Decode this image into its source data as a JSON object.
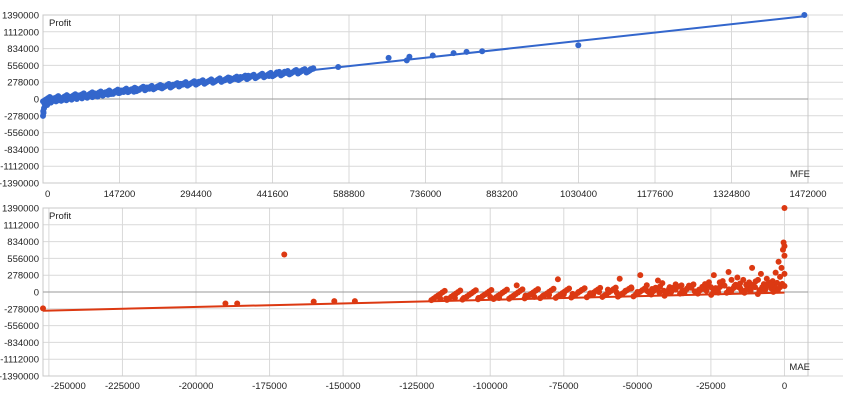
{
  "chart_data": [
    {
      "type": "scatter",
      "title": "",
      "ylabel": "Profit",
      "xlabel": "MFE",
      "xlim": [
        0,
        1472000
      ],
      "ylim": [
        -1390000,
        1390000
      ],
      "x_ticks": [
        {
          "v": 0,
          "t": "0"
        },
        {
          "v": 147200,
          "t": "147200"
        },
        {
          "v": 294400,
          "t": "294400"
        },
        {
          "v": 441600,
          "t": "441600"
        },
        {
          "v": 588800,
          "t": "588800"
        },
        {
          "v": 736000,
          "t": "736000"
        },
        {
          "v": 883200,
          "t": "883200"
        },
        {
          "v": 1030400,
          "t": "1030400"
        },
        {
          "v": 1177600,
          "t": "1177600"
        },
        {
          "v": 1324800,
          "t": "1324800"
        },
        {
          "v": 1472000,
          "t": "1472000"
        }
      ],
      "y_ticks": [
        {
          "v": 1390000,
          "t": "1390000"
        },
        {
          "v": 1112000,
          "t": "1112000"
        },
        {
          "v": 834000,
          "t": "834000"
        },
        {
          "v": 556000,
          "t": "556000"
        },
        {
          "v": 278000,
          "t": "278000"
        },
        {
          "v": 0,
          "t": "0"
        },
        {
          "v": -278000,
          "t": "-278000"
        },
        {
          "v": -556000,
          "t": "-556000"
        },
        {
          "v": -834000,
          "t": "-834000"
        },
        {
          "v": -1112000,
          "t": "-1112000"
        },
        {
          "v": -1390000,
          "t": "-1390000"
        }
      ],
      "color": "#3366cc",
      "grid": true,
      "trendline": {
        "x": [
          0,
          1465000
        ],
        "y": [
          -10000,
          1370000
        ]
      },
      "points": [
        [
          1465000,
          1390000
        ],
        [
          1030000,
          890000
        ],
        [
          845000,
          790000
        ],
        [
          815000,
          780000
        ],
        [
          790000,
          760000
        ],
        [
          750000,
          720000
        ],
        [
          700000,
          640000
        ],
        [
          705000,
          700000
        ],
        [
          665000,
          680000
        ],
        [
          568000,
          530000
        ],
        [
          520000,
          500000
        ],
        [
          515000,
          495000
        ],
        [
          500000,
          480000
        ],
        [
          485000,
          470000
        ],
        [
          465000,
          450000
        ],
        [
          450000,
          440000
        ],
        [
          420000,
          400000
        ],
        [
          395000,
          385000
        ],
        [
          380000,
          365000
        ],
        [
          360000,
          345000
        ],
        [
          340000,
          330000
        ],
        [
          320000,
          300000
        ],
        [
          300000,
          285000
        ],
        [
          290000,
          270000
        ],
        [
          275000,
          260000
        ],
        [
          265000,
          250000
        ],
        [
          250000,
          235000
        ],
        [
          240000,
          225000
        ],
        [
          230000,
          215000
        ],
        [
          220000,
          205000
        ],
        [
          210000,
          200000
        ],
        [
          200000,
          190000
        ],
        [
          190000,
          180000
        ],
        [
          180000,
          170000
        ],
        [
          175000,
          120000
        ],
        [
          170000,
          160000
        ],
        [
          160000,
          150000
        ],
        [
          150000,
          140000
        ],
        [
          140000,
          130000
        ],
        [
          130000,
          120000
        ],
        [
          120000,
          110000
        ],
        [
          110000,
          100000
        ],
        [
          100000,
          90000
        ],
        [
          90000,
          80000
        ],
        [
          80000,
          70000
        ],
        [
          70000,
          60000
        ],
        [
          60000,
          50000
        ],
        [
          50000,
          40000
        ],
        [
          40000,
          30000
        ],
        [
          30000,
          20000
        ],
        [
          20000,
          10000
        ],
        [
          10000,
          5000
        ],
        [
          5000,
          -20000
        ],
        [
          3000,
          -80000
        ],
        [
          2000,
          -150000
        ],
        [
          1000,
          -230000
        ],
        [
          0,
          -280000
        ],
        [
          500,
          -200000
        ],
        [
          8000,
          -100000
        ],
        [
          15000,
          -60000
        ],
        [
          25000,
          -40000
        ],
        [
          35000,
          -30000
        ],
        [
          45000,
          -20000
        ],
        [
          55000,
          -10000
        ],
        [
          65000,
          0
        ],
        [
          75000,
          10000
        ],
        [
          85000,
          20000
        ],
        [
          95000,
          30000
        ],
        [
          105000,
          40000
        ],
        [
          115000,
          55000
        ],
        [
          125000,
          70000
        ],
        [
          135000,
          85000
        ],
        [
          145000,
          100000
        ],
        [
          155000,
          115000
        ],
        [
          165000,
          125000
        ],
        [
          185000,
          150000
        ],
        [
          205000,
          170000
        ],
        [
          225000,
          190000
        ],
        [
          245000,
          215000
        ],
        [
          270000,
          240000
        ],
        [
          310000,
          270000
        ],
        [
          330000,
          290000
        ],
        [
          350000,
          310000
        ],
        [
          370000,
          330000
        ],
        [
          410000,
          360000
        ],
        [
          435000,
          380000
        ],
        [
          470000,
          430000
        ],
        [
          495000,
          460000
        ],
        [
          60000,
          20000
        ],
        [
          80000,
          40000
        ],
        [
          100000,
          60000
        ],
        [
          120000,
          80000
        ],
        [
          20000,
          -30000
        ],
        [
          40000,
          -10000
        ],
        [
          12000,
          -50000
        ],
        [
          30000,
          -20000
        ]
      ]
    },
    {
      "type": "scatter",
      "title": "",
      "ylabel": "Profit",
      "xlabel": "MAE",
      "xlim": [
        -252000,
        8000
      ],
      "ylim": [
        -1390000,
        1390000
      ],
      "x_ticks": [
        {
          "v": -250000,
          "t": "-250000"
        },
        {
          "v": -225000,
          "t": "-225000"
        },
        {
          "v": -200000,
          "t": "-200000"
        },
        {
          "v": -175000,
          "t": "-175000"
        },
        {
          "v": -150000,
          "t": "-150000"
        },
        {
          "v": -125000,
          "t": "-125000"
        },
        {
          "v": -100000,
          "t": "-100000"
        },
        {
          "v": -75000,
          "t": "-75000"
        },
        {
          "v": -50000,
          "t": "-50000"
        },
        {
          "v": -25000,
          "t": "-25000"
        },
        {
          "v": 0,
          "t": "0"
        }
      ],
      "y_ticks": [
        {
          "v": 1390000,
          "t": "1390000"
        },
        {
          "v": 1112000,
          "t": "1112000"
        },
        {
          "v": 834000,
          "t": "834000"
        },
        {
          "v": 556000,
          "t": "556000"
        },
        {
          "v": 278000,
          "t": "278000"
        },
        {
          "v": 0,
          "t": "0"
        },
        {
          "v": -278000,
          "t": "-278000"
        },
        {
          "v": -556000,
          "t": "-556000"
        },
        {
          "v": -834000,
          "t": "-834000"
        },
        {
          "v": -1112000,
          "t": "-1112000"
        },
        {
          "v": -1390000,
          "t": "-1390000"
        }
      ],
      "color": "#dc3912",
      "grid": true,
      "trendline": {
        "x": [
          -252000,
          0
        ],
        "y": [
          -310000,
          -10000
        ]
      },
      "points": [
        [
          -252000,
          -270000
        ],
        [
          -190000,
          -190000
        ],
        [
          -186000,
          -190000
        ],
        [
          -170000,
          620000
        ],
        [
          -160000,
          -160000
        ],
        [
          -153000,
          -150000
        ],
        [
          -146000,
          -150000
        ],
        [
          -117000,
          -110000
        ],
        [
          -115000,
          -110000
        ],
        [
          -112000,
          -100000
        ],
        [
          -109000,
          -100000
        ],
        [
          -104000,
          -100000
        ],
        [
          -100000,
          -80000
        ],
        [
          -97000,
          -100000
        ],
        [
          -93000,
          -90000
        ],
        [
          -91000,
          110000
        ],
        [
          -88000,
          -60000
        ],
        [
          -85000,
          -80000
        ],
        [
          -80000,
          -50000
        ],
        [
          -77000,
          210000
        ],
        [
          -75000,
          -40000
        ],
        [
          -72000,
          -30000
        ],
        [
          -69000,
          30000
        ],
        [
          -66000,
          -20000
        ],
        [
          -63000,
          0
        ],
        [
          -60000,
          40000
        ],
        [
          -57000,
          -10000
        ],
        [
          -56000,
          220000
        ],
        [
          -54000,
          20000
        ],
        [
          -52000,
          60000
        ],
        [
          -50000,
          0
        ],
        [
          -49000,
          280000
        ],
        [
          -47000,
          30000
        ],
        [
          -45000,
          50000
        ],
        [
          -43000,
          190000
        ],
        [
          -41000,
          20000
        ],
        [
          -39000,
          80000
        ],
        [
          -37000,
          40000
        ],
        [
          -35000,
          110000
        ],
        [
          -33000,
          60000
        ],
        [
          -31000,
          120000
        ],
        [
          -29000,
          40000
        ],
        [
          -27000,
          130000
        ],
        [
          -25000,
          80000
        ],
        [
          -24000,
          280000
        ],
        [
          -22000,
          160000
        ],
        [
          -21000,
          180000
        ],
        [
          -19000,
          330000
        ],
        [
          -18000,
          200000
        ],
        [
          -17000,
          100000
        ],
        [
          -16000,
          240000
        ],
        [
          -15000,
          60000
        ],
        [
          -14000,
          200000
        ],
        [
          -13000,
          120000
        ],
        [
          -12000,
          160000
        ],
        [
          -11000,
          400000
        ],
        [
          -10000,
          80000
        ],
        [
          -9000,
          200000
        ],
        [
          -8000,
          300000
        ],
        [
          -7000,
          130000
        ],
        [
          -6000,
          220000
        ],
        [
          -5000,
          100000
        ],
        [
          -4000,
          180000
        ],
        [
          -3000,
          320000
        ],
        [
          -2000,
          500000
        ],
        [
          -1000,
          400000
        ],
        [
          -500,
          700000
        ],
        [
          -300,
          820000
        ],
        [
          0,
          1390000
        ],
        [
          0,
          760000
        ],
        [
          0,
          600000
        ],
        [
          0,
          300000
        ],
        [
          -1500,
          250000
        ],
        [
          -2500,
          150000
        ],
        [
          -3500,
          90000
        ],
        [
          -4500,
          60000
        ],
        [
          -6500,
          40000
        ],
        [
          -8500,
          30000
        ],
        [
          -11500,
          20000
        ],
        [
          -14500,
          10000
        ],
        [
          -18500,
          0
        ],
        [
          -22500,
          -10000
        ],
        [
          -26500,
          20000
        ],
        [
          -30500,
          10000
        ],
        [
          -34500,
          -20000
        ],
        [
          -38500,
          0
        ],
        [
          -42500,
          -10000
        ],
        [
          -46500,
          10000
        ],
        [
          -55000,
          -30000
        ],
        [
          -65000,
          -40000
        ],
        [
          -70000,
          0
        ],
        [
          -82000,
          -60000
        ]
      ]
    }
  ]
}
